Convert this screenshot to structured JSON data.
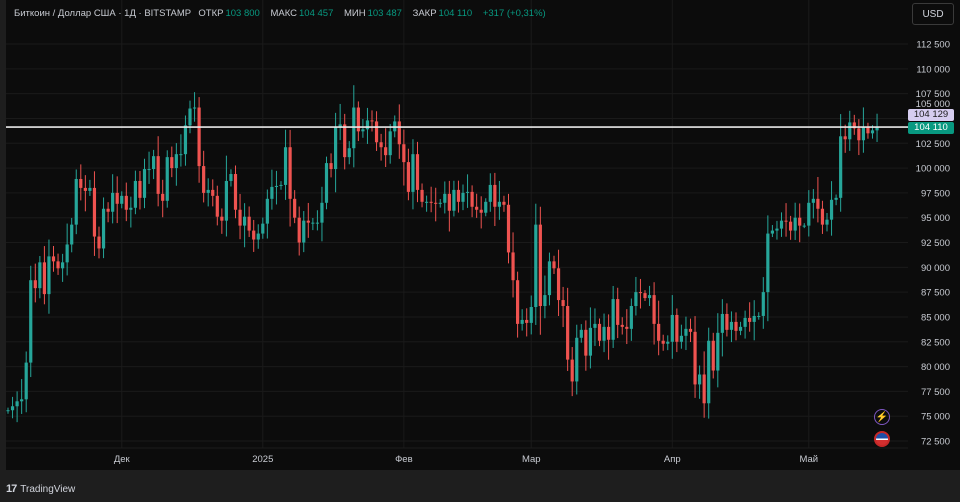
{
  "header": {
    "symbol": "Биткоин / Доллар США · 1Д · BITSTAMP",
    "open_label": "ОТКР",
    "open": "103 800",
    "high_label": "МАКС",
    "high": "104 457",
    "low_label": "МИН",
    "low": "103 487",
    "close_label": "ЗАКР",
    "close": "104 110",
    "change": "+317 (+0,31%)"
  },
  "currency_button": "USD",
  "price_labels": {
    "line_price": "104 129",
    "last_price": "104 110"
  },
  "footer": {
    "brand": "TradingView"
  },
  "icons": [
    "lightning-icon",
    "us-flag-icon"
  ],
  "colors": {
    "up": "#26a69a",
    "down": "#ef5350",
    "background": "#0c0c0c",
    "accent_green": "#089981",
    "line_label": "#d6cdf0"
  },
  "chart_data": {
    "type": "candlestick",
    "title": "Биткоин / Доллар США · 1Д · BITSTAMP",
    "ylim": [
      72500,
      113500
    ],
    "y_ticks": [
      112500,
      110000,
      107500,
      105000,
      102500,
      100000,
      97500,
      95000,
      92500,
      90000,
      87500,
      85000,
      82500,
      80000,
      77500,
      75000,
      72500
    ],
    "y_tick_labels": [
      "112 500",
      "110 000",
      "107 500",
      "105 000",
      "102 500",
      "100 000",
      "97 500",
      "95 000",
      "92 500",
      "90 000",
      "87 500",
      "85 000",
      "82 500",
      "80 000",
      "77 500",
      "75 000",
      "72 500"
    ],
    "x_tick_labels": [
      {
        "label": "Дек",
        "date": "2024-12-01"
      },
      {
        "label": "2025",
        "date": "2025-01-01"
      },
      {
        "label": "Фев",
        "date": "2025-02-01"
      },
      {
        "label": "Мар",
        "date": "2025-03-01"
      },
      {
        "label": "Апр",
        "date": "2025-04-01"
      },
      {
        "label": "Май",
        "date": "2025-05-01"
      }
    ],
    "horizontal_line": 104129,
    "last_price": 104110,
    "first_open": 75500,
    "daily_closes": [
      {
        "month": "2024-11",
        "first_day": 6,
        "close": [
          75600,
          76000,
          76500,
          76700,
          80400,
          88700,
          87900,
          90500,
          87300,
          91100,
          90600,
          89900,
          90500,
          92300,
          94300,
          98900,
          98000,
          97700,
          98000,
          93100,
          91900,
          95900,
          95600,
          97500,
          96400
        ]
      },
      {
        "month": "2024-12",
        "first_day": 1,
        "close": [
          97200,
          95800,
          96000,
          98700,
          97000,
          99900,
          99900,
          101200,
          97400,
          96700,
          101100,
          100000,
          101400,
          101400,
          104300,
          106000,
          106100,
          100200,
          97500,
          97800,
          97200,
          95100,
          94700,
          98700,
          99400,
          95800,
          94200,
          95100,
          93700,
          92800,
          93400
        ]
      },
      {
        "month": "2025-01",
        "first_day": 1,
        "close": [
          94400,
          96900,
          98100,
          98200,
          98300,
          102100,
          96900,
          95000,
          92500,
          94700,
          94500,
          94500,
          94500,
          96500,
          100500,
          99900,
          104100,
          104400,
          101100,
          102000,
          106100,
          103700,
          103900,
          104800,
          104700,
          102600,
          102100,
          101300,
          103700,
          104700,
          102400
        ]
      },
      {
        "month": "2025-02",
        "first_day": 1,
        "close": [
          100600,
          97600,
          101400,
          97800,
          96600,
          96600,
          96500,
          96400,
          96500,
          97400,
          95700,
          97800,
          96600,
          97500,
          97600,
          96100,
          95800,
          95500,
          96600,
          98300,
          96100,
          96600,
          96300,
          91500,
          88700,
          84300,
          84700,
          84400
        ]
      },
      {
        "month": "2025-03",
        "first_day": 1,
        "close": [
          86000,
          94300,
          86100,
          87200,
          90600,
          89900,
          86700,
          86100,
          80700,
          78500,
          82900,
          83700,
          81100,
          83900,
          84300,
          82600,
          84000,
          82700,
          86800,
          84200,
          84000,
          83800,
          86100,
          87500,
          87400,
          86900,
          87200,
          84300,
          82600,
          82300,
          82500
        ]
      },
      {
        "month": "2025-04",
        "first_day": 1,
        "close": [
          85200,
          82500,
          83100,
          83800,
          83500,
          78200,
          79200,
          76300,
          82600,
          79600,
          83400,
          85300,
          83700,
          84500,
          83600,
          84000,
          84900,
          84500,
          85100,
          85100,
          87500,
          93400,
          93700,
          93900,
          94700,
          94600,
          93700,
          95000,
          94200,
          94200
        ]
      },
      {
        "month": "2025-05",
        "first_day": 1,
        "close": [
          96500,
          96900,
          95900,
          94300,
          94800,
          96800,
          97000,
          103200,
          102900,
          104600,
          104000,
          102800,
          104100,
          103500,
          103800,
          104110
        ]
      }
    ]
  }
}
